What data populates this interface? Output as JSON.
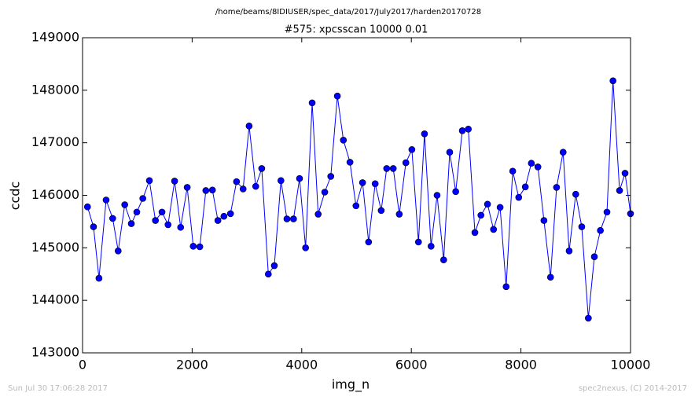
{
  "chart_data": {
    "type": "line",
    "suptitle": "/home/beams/8IDIUSER/spec_data/2017/July2017/harden20170728",
    "title": "#575: xpcsscan 10000 0.01",
    "x_label": "img_n",
    "y_label": "ccdc",
    "footer_left": "Sun Jul 30 17:06:28 2017",
    "footer_right": "spec2nexus, (C) 2014-2017",
    "color": "#0000ff",
    "markers": true,
    "x": [
      90,
      200,
      300,
      430,
      550,
      650,
      770,
      890,
      990,
      1100,
      1220,
      1330,
      1450,
      1560,
      1680,
      1790,
      1910,
      2020,
      2140,
      2250,
      2370,
      2470,
      2580,
      2700,
      2810,
      2930,
      3040,
      3160,
      3270,
      3390,
      3500,
      3620,
      3730,
      3850,
      3960,
      4070,
      4190,
      4300,
      4420,
      4530,
      4650,
      4760,
      4880,
      4990,
      5110,
      5220,
      5340,
      5450,
      5550,
      5670,
      5780,
      5900,
      6010,
      6130,
      6240,
      6360,
      6470,
      6590,
      6700,
      6810,
      6930,
      7040,
      7160,
      7270,
      7390,
      7500,
      7620,
      7730,
      7850,
      7960,
      8080,
      8190,
      8310,
      8420,
      8540,
      8650,
      8770,
      8880,
      9000,
      9110,
      9230,
      9340,
      9450,
      9570,
      9680,
      9800,
      9900,
      10000
    ],
    "values": [
      145780,
      145400,
      144420,
      145910,
      145560,
      144940,
      145820,
      145460,
      145680,
      145940,
      146280,
      145520,
      145680,
      145440,
      146270,
      145390,
      146150,
      145030,
      145020,
      146090,
      146100,
      145520,
      145600,
      145650,
      146260,
      146120,
      147320,
      146170,
      146510,
      144500,
      144660,
      146280,
      145550,
      145550,
      146320,
      145000,
      147760,
      145640,
      146060,
      146360,
      147890,
      147050,
      146630,
      145800,
      146240,
      145110,
      146220,
      145710,
      146510,
      146510,
      145640,
      146620,
      146870,
      145110,
      147170,
      145030,
      146000,
      144770,
      146820,
      146070,
      147230,
      147260,
      145290,
      145620,
      145830,
      145350,
      145770,
      144260,
      146460,
      145960,
      146160,
      146610,
      146540,
      145520,
      144440,
      146150,
      146820,
      144940,
      146020,
      145400,
      143660,
      144830,
      145330,
      145680,
      148180,
      146090,
      146420,
      145650
    ],
    "xlim": [
      0,
      10000
    ],
    "xticks": [
      0,
      2000,
      4000,
      6000,
      8000,
      10000
    ],
    "ylim": [
      143000,
      149000
    ],
    "yticks": [
      143000,
      144000,
      145000,
      146000,
      147000,
      148000,
      149000
    ],
    "grid": false
  }
}
